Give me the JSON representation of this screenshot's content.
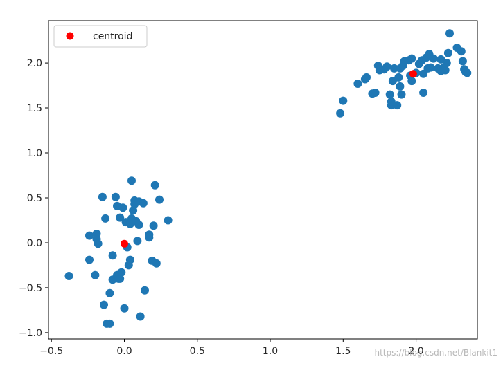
{
  "chart_data": {
    "type": "scatter",
    "title": "",
    "xlabel": "",
    "ylabel": "",
    "xlim": [
      -0.52,
      2.42
    ],
    "ylim": [
      -1.07,
      2.47
    ],
    "xticks": [
      -0.5,
      0.0,
      0.5,
      1.0,
      1.5,
      2.0
    ],
    "xtick_labels": [
      "−0.5",
      "0.0",
      "0.5",
      "1.0",
      "1.5",
      "2.0"
    ],
    "yticks": [
      -1.0,
      -0.5,
      0.0,
      0.5,
      1.0,
      1.5,
      2.0
    ],
    "ytick_labels": [
      "−1.0",
      "−0.5",
      "0.0",
      "0.5",
      "1.0",
      "1.5",
      "2.0"
    ],
    "grid": false,
    "legend_location": "upper left",
    "colors": {
      "points": "#1f77b4",
      "centroid": "#ff0000"
    },
    "series": [
      {
        "name": "",
        "color": "#1f77b4",
        "points": [
          [
            -0.38,
            -0.37
          ],
          [
            -0.24,
            0.08
          ],
          [
            -0.24,
            -0.19
          ],
          [
            -0.2,
            -0.36
          ],
          [
            -0.19,
            0.1
          ],
          [
            -0.19,
            0.04
          ],
          [
            -0.18,
            -0.01
          ],
          [
            -0.15,
            0.51
          ],
          [
            -0.14,
            -0.69
          ],
          [
            -0.13,
            0.27
          ],
          [
            -0.12,
            -0.9
          ],
          [
            -0.1,
            -0.9
          ],
          [
            -0.1,
            -0.56
          ],
          [
            -0.08,
            -0.14
          ],
          [
            -0.08,
            -0.41
          ],
          [
            -0.06,
            0.51
          ],
          [
            -0.05,
            -0.36
          ],
          [
            -0.05,
            0.41
          ],
          [
            -0.04,
            -0.4
          ],
          [
            -0.03,
            -0.4
          ],
          [
            -0.03,
            0.28
          ],
          [
            -0.02,
            -0.33
          ],
          [
            -0.01,
            0.39
          ],
          [
            0.0,
            -0.73
          ],
          [
            0.01,
            0.23
          ],
          [
            0.02,
            -0.05
          ],
          [
            0.03,
            -0.25
          ],
          [
            0.04,
            0.21
          ],
          [
            0.04,
            -0.19
          ],
          [
            0.05,
            0.69
          ],
          [
            0.05,
            0.27
          ],
          [
            0.06,
            0.36
          ],
          [
            0.07,
            0.43
          ],
          [
            0.07,
            0.47
          ],
          [
            0.08,
            0.24
          ],
          [
            0.09,
            0.02
          ],
          [
            0.1,
            0.2
          ],
          [
            0.1,
            0.46
          ],
          [
            0.11,
            -0.82
          ],
          [
            0.13,
            0.44
          ],
          [
            0.14,
            -0.53
          ],
          [
            0.17,
            0.06
          ],
          [
            0.17,
            0.09
          ],
          [
            0.19,
            -0.2
          ],
          [
            0.2,
            0.19
          ],
          [
            0.21,
            0.64
          ],
          [
            0.22,
            -0.23
          ],
          [
            0.24,
            0.48
          ],
          [
            0.3,
            0.25
          ],
          [
            1.48,
            1.44
          ],
          [
            1.5,
            1.58
          ],
          [
            1.6,
            1.77
          ],
          [
            1.65,
            1.82
          ],
          [
            1.66,
            1.84
          ],
          [
            1.7,
            1.66
          ],
          [
            1.72,
            1.67
          ],
          [
            1.74,
            1.97
          ],
          [
            1.75,
            1.92
          ],
          [
            1.78,
            1.93
          ],
          [
            1.8,
            1.96
          ],
          [
            1.82,
            1.65
          ],
          [
            1.83,
            1.53
          ],
          [
            1.83,
            1.57
          ],
          [
            1.84,
            1.8
          ],
          [
            1.85,
            1.94
          ],
          [
            1.87,
            1.53
          ],
          [
            1.88,
            1.84
          ],
          [
            1.89,
            1.94
          ],
          [
            1.89,
            1.74
          ],
          [
            1.9,
            1.65
          ],
          [
            1.91,
            1.97
          ],
          [
            1.92,
            2.02
          ],
          [
            1.95,
            2.03
          ],
          [
            1.96,
            1.86
          ],
          [
            1.97,
            2.05
          ],
          [
            1.97,
            1.8
          ],
          [
            2.0,
            1.89
          ],
          [
            2.02,
            1.99
          ],
          [
            2.04,
            2.03
          ],
          [
            2.05,
            1.88
          ],
          [
            2.05,
            1.67
          ],
          [
            2.07,
            2.06
          ],
          [
            2.08,
            1.94
          ],
          [
            2.09,
            2.1
          ],
          [
            2.1,
            1.95
          ],
          [
            2.12,
            2.05
          ],
          [
            2.15,
            1.94
          ],
          [
            2.17,
            2.04
          ],
          [
            2.17,
            1.91
          ],
          [
            2.19,
            1.95
          ],
          [
            2.2,
            1.92
          ],
          [
            2.21,
            2.0
          ],
          [
            2.22,
            2.11
          ],
          [
            2.23,
            2.33
          ],
          [
            2.28,
            2.17
          ],
          [
            2.31,
            2.13
          ],
          [
            2.32,
            2.02
          ],
          [
            2.33,
            1.93
          ],
          [
            2.34,
            1.9
          ],
          [
            2.35,
            1.89
          ]
        ]
      },
      {
        "name": "centroid",
        "color": "#ff0000",
        "points": [
          [
            0.0,
            -0.01
          ],
          [
            1.98,
            1.88
          ]
        ]
      }
    ],
    "legend": {
      "label": "centroid",
      "location": "upper left"
    }
  },
  "watermark": {
    "text": "https://blog.csdn.net/Blankit1"
  }
}
